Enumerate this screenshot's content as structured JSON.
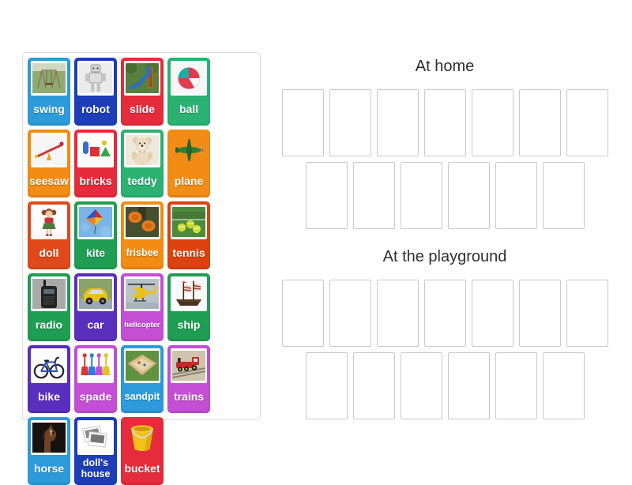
{
  "page": {
    "background": "#ffffff"
  },
  "source_tray": {
    "cards": [
      {
        "label": "swing",
        "color": "#2D9BD9",
        "icon": "swing-icon",
        "framed": true
      },
      {
        "label": "robot",
        "color": "#1E3EB8",
        "icon": "robot-icon",
        "framed": true
      },
      {
        "label": "slide",
        "color": "#E62B3C",
        "icon": "slide-icon",
        "framed": true
      },
      {
        "label": "ball",
        "color": "#2BB273",
        "icon": "beach-ball-icon",
        "framed": true
      },
      {
        "label": "seesaw",
        "color": "#F28C14",
        "icon": "seesaw-icon",
        "framed": true
      },
      {
        "label": "bricks",
        "color": "#E62B3C",
        "icon": "toy-bricks-icon",
        "framed": true
      },
      {
        "label": "teddy",
        "color": "#2BB273",
        "icon": "teddy-bear-icon",
        "framed": true
      },
      {
        "label": "plane",
        "color": "#F28C14",
        "icon": "toy-plane-icon",
        "framed": false
      },
      {
        "label": "doll",
        "color": "#E0491A",
        "icon": "doll-icon",
        "framed": true
      },
      {
        "label": "kite",
        "color": "#1F9D53",
        "icon": "kite-icon",
        "framed": true
      },
      {
        "label": "frisbee",
        "color": "#F28C14",
        "icon": "frisbee-icon",
        "framed": true
      },
      {
        "label": "tennis",
        "color": "#DB420E",
        "icon": "tennis-balls-icon",
        "framed": true
      },
      {
        "label": "radio",
        "color": "#1F9D53",
        "icon": "radio-icon",
        "framed": true
      },
      {
        "label": "car",
        "color": "#5B2FBE",
        "icon": "car-icon",
        "framed": true
      },
      {
        "label": "helicopter",
        "color": "#C44FD4",
        "icon": "helicopter-icon",
        "framed": true
      },
      {
        "label": "ship",
        "color": "#1F9D53",
        "icon": "ship-icon",
        "framed": true
      },
      {
        "label": "bike",
        "color": "#5B2FBE",
        "icon": "bike-icon",
        "framed": true
      },
      {
        "label": "spade",
        "color": "#C44FD4",
        "icon": "spades-icon",
        "framed": true
      },
      {
        "label": "sandpit",
        "color": "#2D9BD9",
        "icon": "sandpit-icon",
        "framed": true
      },
      {
        "label": "trains",
        "color": "#C44FD4",
        "icon": "toy-train-icon",
        "framed": true
      },
      {
        "label": "horse",
        "color": "#2D9BD9",
        "icon": "horse-icon",
        "framed": true
      },
      {
        "label": "doll's house",
        "color": "#1E3EB8",
        "icon": "missing-photo-icon",
        "framed": true
      },
      {
        "label": "bucket",
        "color": "#E62B3C",
        "icon": "bucket-icon",
        "framed": false
      }
    ]
  },
  "groups": [
    {
      "title": "At home",
      "rows": [
        7,
        6
      ]
    },
    {
      "title": "At the playground",
      "rows": [
        7,
        6
      ]
    }
  ],
  "styles": {
    "heading_color": "#2e2e2e",
    "slot_border_color": "#c9c9c9",
    "tray_border_color": "#dcdcdc",
    "card_label_color": "#ffffff"
  }
}
